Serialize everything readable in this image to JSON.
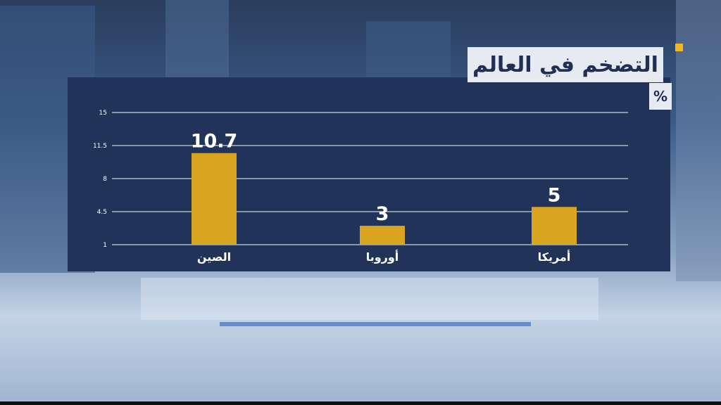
{
  "title": "التضخم في العالم",
  "unit": "%",
  "colors": {
    "panel": "#22335a",
    "bar": "#d9a51f",
    "text": "#ffffff",
    "title_bg": "#e7ebf1",
    "title_text": "#1f2f56",
    "accent": "#f5b71c"
  },
  "chart_data": {
    "type": "bar",
    "categories": [
      "الصين",
      "أوروبا",
      "أمريكا"
    ],
    "values": [
      10.7,
      3,
      5
    ],
    "value_labels": [
      "10.7",
      "3",
      "5"
    ],
    "yticks": [
      "15",
      "11.5",
      "8",
      "4.5",
      "1"
    ],
    "ylim": [
      1,
      15
    ],
    "grid": true,
    "xlabel": "",
    "ylabel": ""
  }
}
